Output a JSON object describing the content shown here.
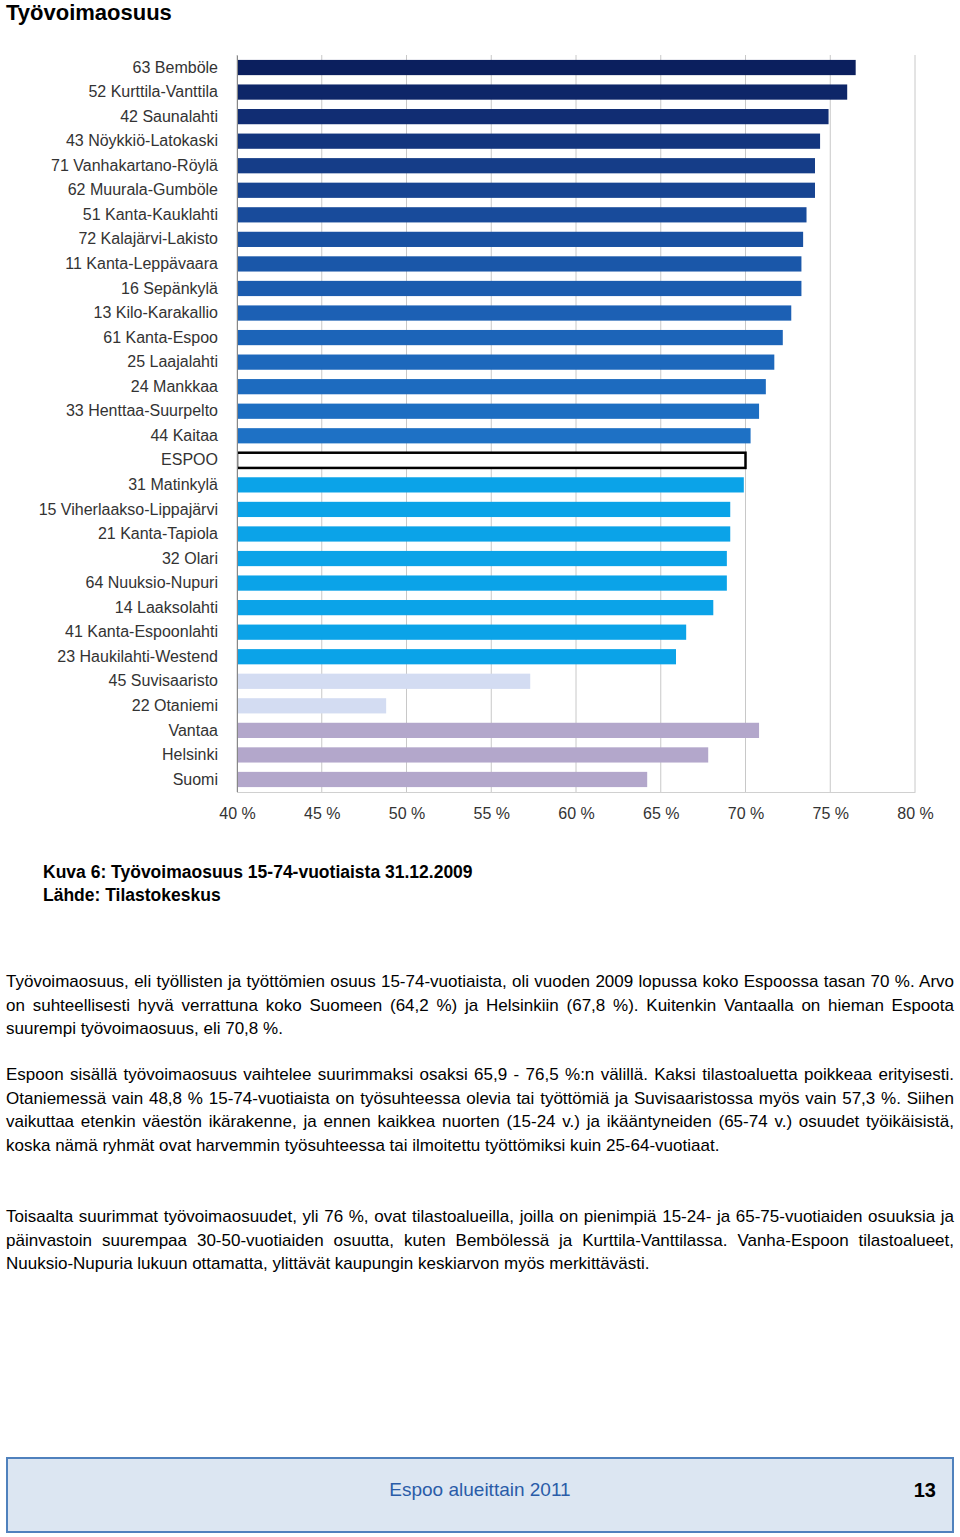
{
  "header": {
    "title": "Työvoimaosuus"
  },
  "chart_data": {
    "type": "bar",
    "orientation": "horizontal",
    "categories": [
      "63 Bemböle",
      "52 Kurttila-Vanttila",
      "42 Saunalahti",
      "43 Nöykkiö-Latokaski",
      "71 Vanhakartano-Röylä",
      "62 Muurala-Gumböle",
      "51 Kanta-Kauklahti",
      "72 Kalajärvi-Lakisto",
      "11 Kanta-Leppävaara",
      "16 Sepänkylä",
      "13 Kilo-Karakallio",
      "61 Kanta-Espoo",
      "25 Laajalahti",
      "24 Mankkaa",
      "33 Henttaa-Suurpelto",
      "44 Kaitaa",
      "ESPOO",
      "31 Matinkylä",
      "15 Viherlaakso-Lippajärvi",
      "21 Kanta-Tapiola",
      "32 Olari",
      "64 Nuuksio-Nupuri",
      "14 Laaksolahti",
      "41 Kanta-Espoonlahti",
      "23 Haukilahti-Westend",
      "45 Suvisaaristo",
      "22 Otaniemi",
      "Vantaa",
      "Helsinki",
      "Suomi"
    ],
    "values": [
      76.5,
      76.0,
      74.9,
      74.4,
      74.1,
      74.1,
      73.6,
      73.4,
      73.3,
      73.3,
      72.7,
      72.2,
      71.7,
      71.2,
      70.8,
      70.3,
      70.0,
      69.9,
      69.1,
      69.1,
      68.9,
      68.9,
      68.1,
      66.5,
      65.9,
      57.3,
      48.8,
      70.8,
      67.8,
      64.2
    ],
    "colors": [
      "#0b1f5e",
      "#0e2668",
      "#112d73",
      "#13357e",
      "#153d88",
      "#174492",
      "#184b9b",
      "#1951a2",
      "#1a57a9",
      "#1b5caf",
      "#1c60b4",
      "#1c64b8",
      "#1d68bc",
      "#1d6bbf",
      "#1d6ec2",
      "#1e71c5",
      "#ffffff",
      "#0ba3e8",
      "#0ba3e8",
      "#0ba3e8",
      "#0ba3e8",
      "#0ba3e8",
      "#0ba3e8",
      "#0ba3e8",
      "#0ba3e8",
      "#d3dcf2",
      "#d3dcf2",
      "#b3a7cb",
      "#b3a7cb",
      "#b3a7cb"
    ],
    "xlim": [
      40,
      80
    ],
    "xticks": [
      {
        "value": 40,
        "label": "40 %"
      },
      {
        "value": 45,
        "label": "45 %"
      },
      {
        "value": 50,
        "label": "50 %"
      },
      {
        "value": 55,
        "label": "55 %"
      },
      {
        "value": 60,
        "label": "60 %"
      },
      {
        "value": 65,
        "label": "65 %"
      },
      {
        "value": 70,
        "label": "70 %"
      },
      {
        "value": 75,
        "label": "75 %"
      },
      {
        "value": 80,
        "label": "80 %"
      }
    ],
    "grid": true
  },
  "caption": {
    "title": "Kuva 6: Työvoimaosuus 15-74-vuotiaista 31.12.2009",
    "source": "Lähde: Tilastokeskus"
  },
  "paragraphs": [
    "Työvoimaosuus, eli työllisten ja työttömien osuus 15-74-vuotiaista, oli vuoden 2009 lopussa koko Espoossa tasan 70 %. Arvo on suhteellisesti hyvä verrattuna koko Suomeen (64,2 %) ja Helsinkiin (67,8 %). Kuitenkin Vantaalla on hieman Espoota suurempi työvoimaosuus, eli 70,8 %.",
    "Espoon sisällä työvoimaosuus vaihtelee suurimmaksi osaksi 65,9 - 76,5 %:n välillä. Kaksi tilastoaluetta poikkeaa erityisesti. Otaniemessä vain 48,8 % 15-74-vuotiaista on työsuhteessa olevia tai työttömiä ja Suvisaaristossa myös vain 57,3 %. Siihen vaikuttaa etenkin väestön ikärakenne, ja ennen kaikkea nuorten (15-24 v.) ja ikääntyneiden (65-74 v.) osuudet työikäisistä, koska nämä ryhmät ovat harvemmin työsuhteessa tai ilmoitettu työttömiksi kuin 25-64-vuotiaat.",
    "Toisaalta suurimmat työvoimaosuudet, yli 76 %, ovat tilastoalueilla, joilla on pienimpiä 15-24- ja 65-75-vuotiaiden osuuksia ja päinvastoin suurempaa 30-50-vuotiaiden osuutta, kuten Bembölessä ja Kurttila-Vanttilassa. Vanha-Espoon tilastoalueet, Nuuksio-Nupuria lukuun ottamatta, ylittävät kaupungin keskiarvon myös merkittävästi."
  ],
  "footer": {
    "text": "Espoo alueittain 2011",
    "page": 13
  }
}
